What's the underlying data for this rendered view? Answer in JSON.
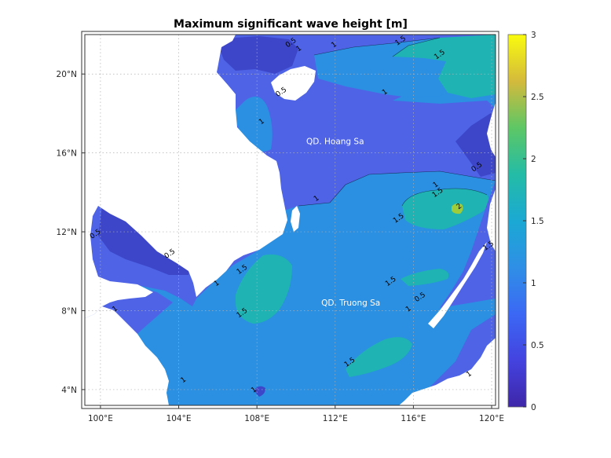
{
  "chart_data": {
    "type": "heatmap",
    "title": "Maximum significant wave height [m]",
    "xlabel": "",
    "ylabel": "",
    "xlim": [
      99.2,
      120.2
    ],
    "ylim": [
      3.2,
      22.0
    ],
    "x_ticks": [
      100,
      104,
      108,
      112,
      116,
      120
    ],
    "x_tick_labels": [
      "100°E",
      "104°E",
      "108°E",
      "112°E",
      "116°E",
      "120°E"
    ],
    "y_ticks": [
      4,
      8,
      12,
      16,
      20
    ],
    "y_tick_labels": [
      "4°N",
      "8°N",
      "12°N",
      "16°N",
      "20°N"
    ],
    "grid": true,
    "colorbar": {
      "min": 0,
      "max": 3,
      "ticks": [
        0,
        0.5,
        1,
        1.5,
        2,
        2.5,
        3
      ],
      "tick_labels": [
        "0",
        "0.5",
        "1",
        "1.5",
        "2",
        "2.5",
        "3"
      ],
      "placement": "right"
    },
    "contour_levels": [
      0.5,
      1,
      1.5,
      2
    ],
    "colors": {
      "land": "#ffffff",
      "lvl_0_5": "#3d46c8",
      "lvl_0_5_1": "#4e63e6",
      "lvl_1_1_5": "#2b8fe2",
      "lvl_1_5_2": "#1fb3b3",
      "lvl_2_plus": "#9ecc3a",
      "contour": "#000000"
    },
    "annotations": [
      {
        "text": "QD. Hoang Sa",
        "lon": 112.0,
        "lat": 16.45
      },
      {
        "text": "QD. Truong Sa",
        "lon": 112.8,
        "lat": 8.25
      }
    ],
    "contour_labels": [
      {
        "text": "1",
        "lon": 112.0,
        "lat": 21.4
      },
      {
        "text": "1.5",
        "lon": 115.4,
        "lat": 21.6
      },
      {
        "text": "1.5",
        "lon": 117.4,
        "lat": 20.9
      },
      {
        "text": "1",
        "lon": 110.2,
        "lat": 21.2
      },
      {
        "text": "1",
        "lon": 114.6,
        "lat": 19.0
      },
      {
        "text": "0.5",
        "lon": 109.3,
        "lat": 19.0
      },
      {
        "text": "1",
        "lon": 108.3,
        "lat": 17.5
      },
      {
        "text": "0.5",
        "lon": 119.3,
        "lat": 15.2
      },
      {
        "text": "1.5",
        "lon": 117.3,
        "lat": 13.9
      },
      {
        "text": "1",
        "lon": 117.2,
        "lat": 14.3
      },
      {
        "text": "1.5",
        "lon": 115.3,
        "lat": 12.6
      },
      {
        "text": "2",
        "lon": 118.4,
        "lat": 13.2
      },
      {
        "text": "1",
        "lon": 111.1,
        "lat": 13.6
      },
      {
        "text": "0.5",
        "lon": 99.8,
        "lat": 11.8
      },
      {
        "text": "0.5",
        "lon": 103.6,
        "lat": 10.8
      },
      {
        "text": "1.5",
        "lon": 107.3,
        "lat": 10.0
      },
      {
        "text": "1.5",
        "lon": 114.9,
        "lat": 9.4
      },
      {
        "text": "1",
        "lon": 106.0,
        "lat": 9.3
      },
      {
        "text": "0.5",
        "lon": 116.4,
        "lat": 8.6
      },
      {
        "text": "1",
        "lon": 115.8,
        "lat": 8.0
      },
      {
        "text": "1",
        "lon": 100.8,
        "lat": 8.0
      },
      {
        "text": "1.5",
        "lon": 107.3,
        "lat": 7.8
      },
      {
        "text": "1.5",
        "lon": 119.9,
        "lat": 11.2
      },
      {
        "text": "1.5",
        "lon": 112.8,
        "lat": 5.3
      },
      {
        "text": "1",
        "lon": 104.3,
        "lat": 4.4
      },
      {
        "text": "1",
        "lon": 107.9,
        "lat": 3.9
      },
      {
        "text": "1",
        "lon": 118.9,
        "lat": 4.7
      },
      {
        "text": "0.5",
        "lon": 109.8,
        "lat": 21.5
      }
    ]
  }
}
